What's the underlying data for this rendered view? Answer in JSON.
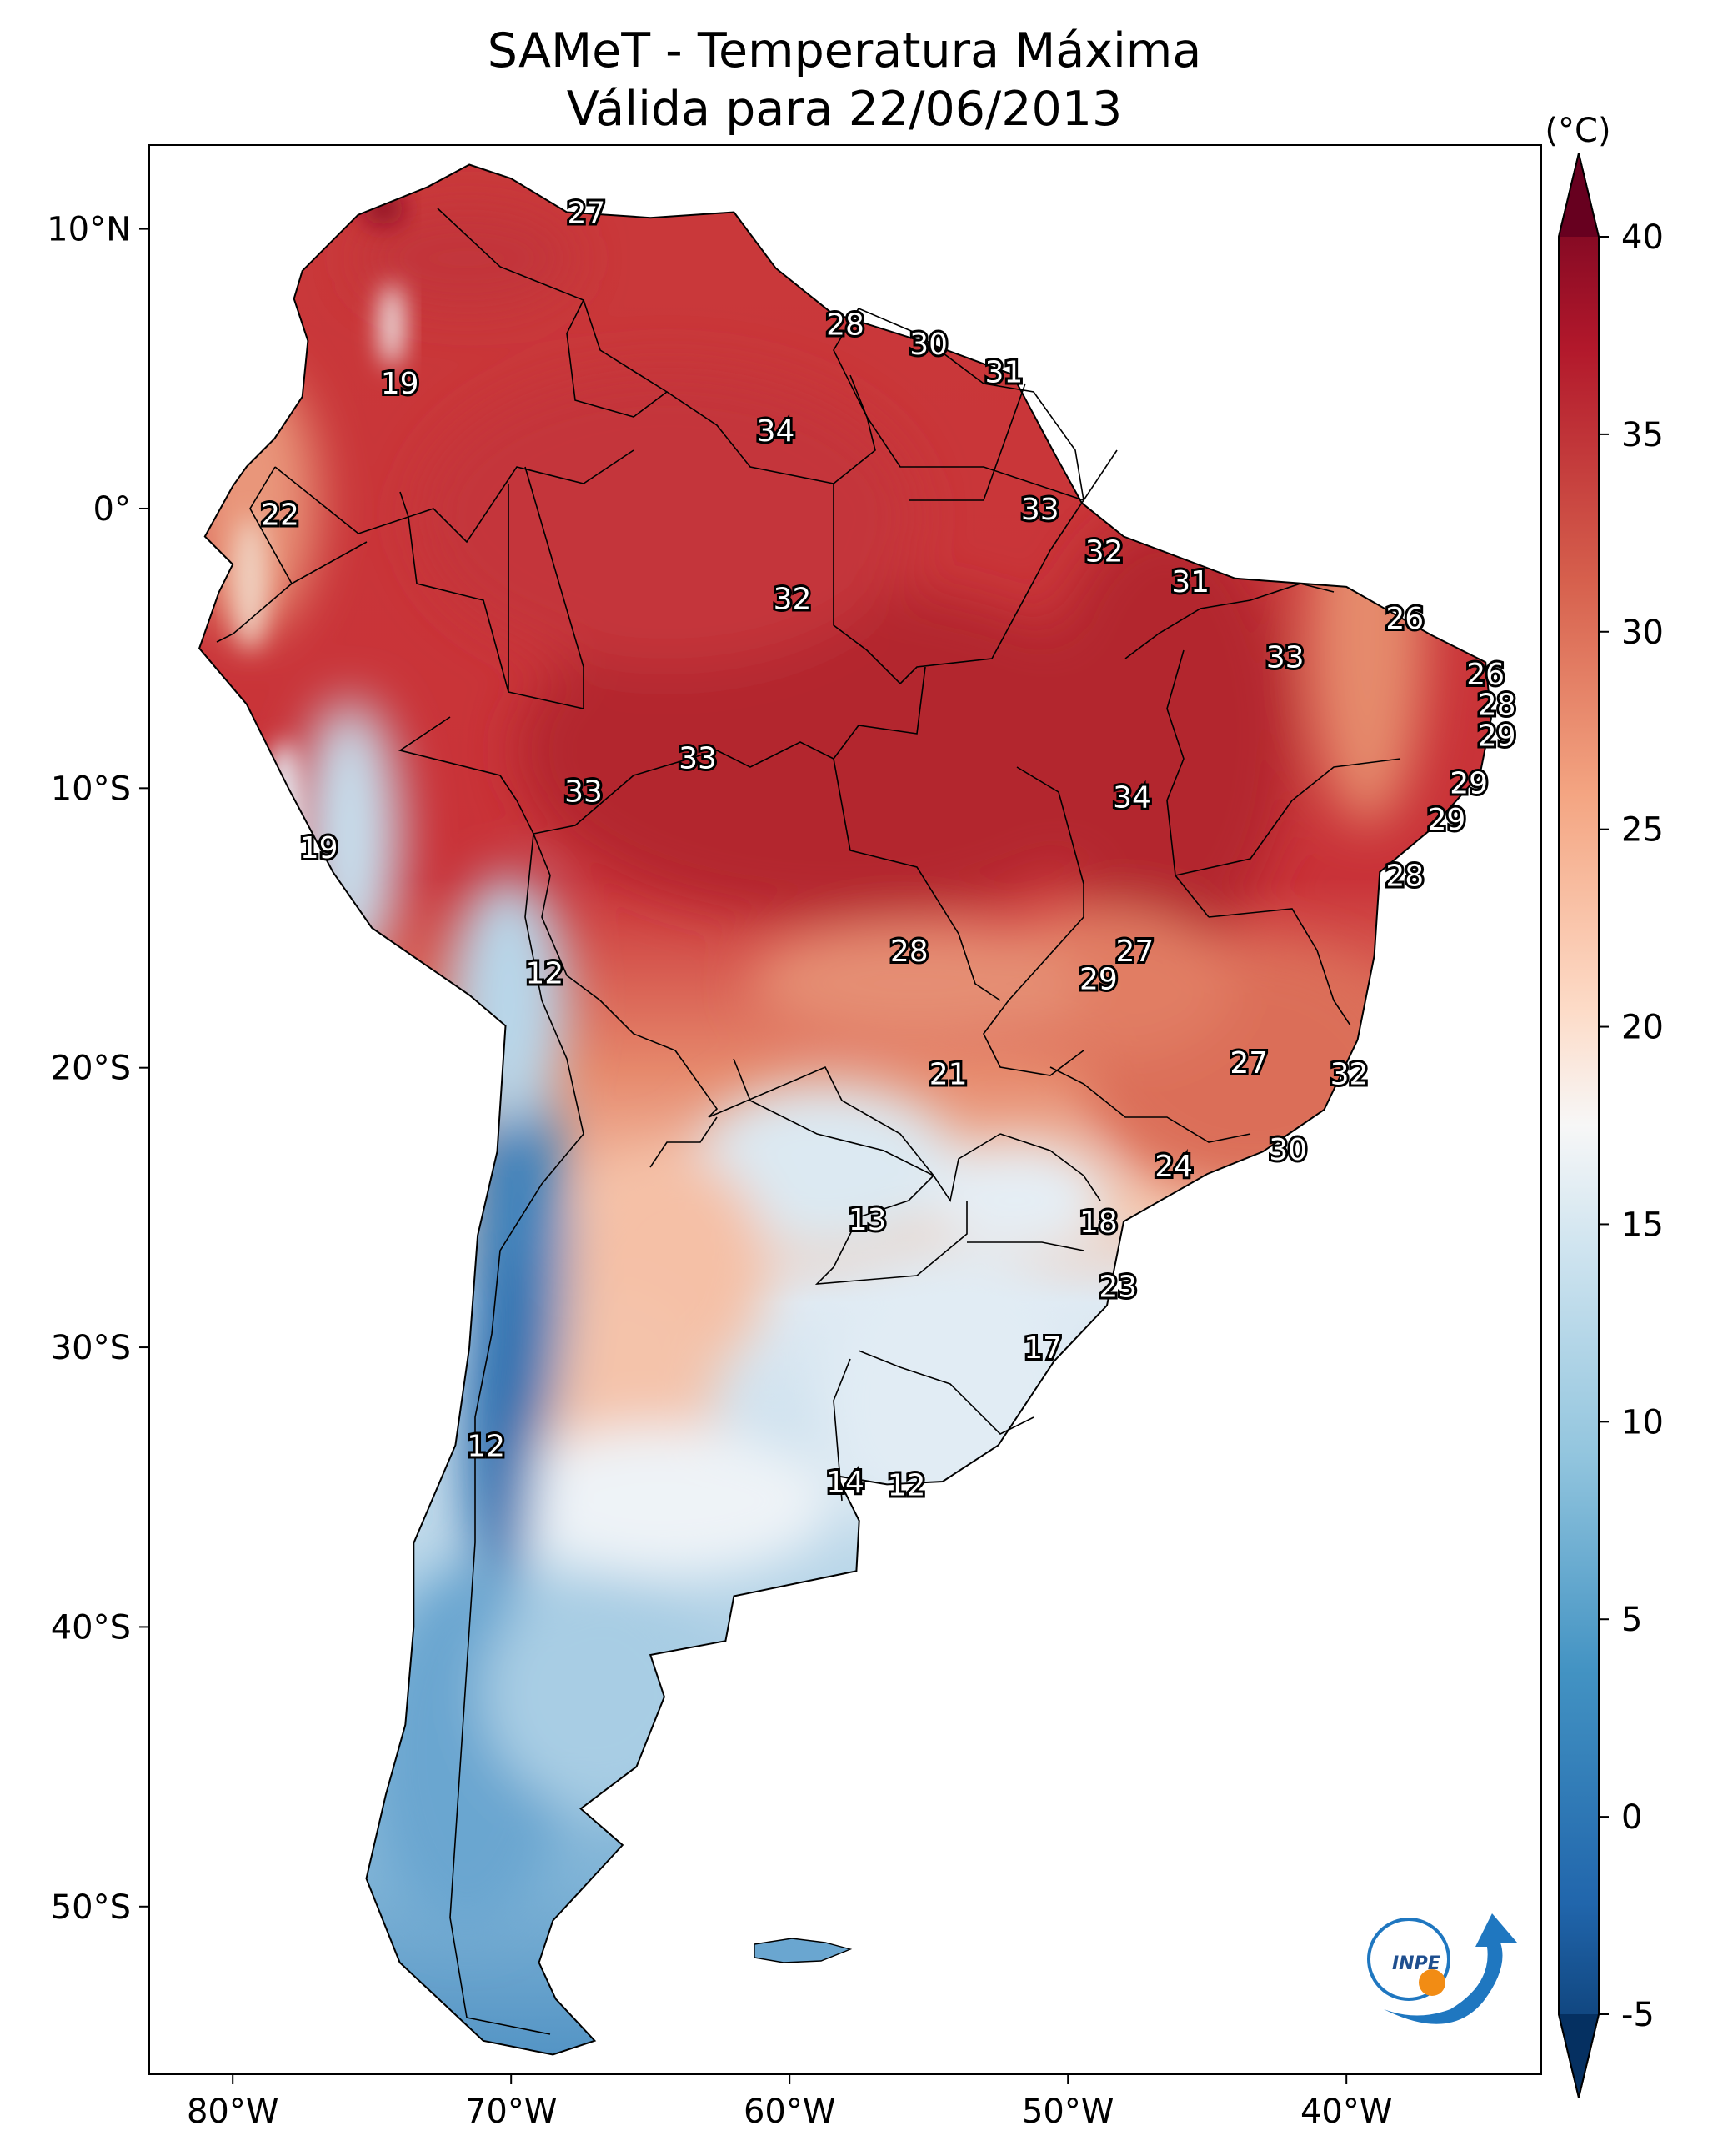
{
  "title_line1": "SAMeT - Temperatura Máxima",
  "title_line2": "Válida para 22/06/2013",
  "colorbar": {
    "unit": "(°C)",
    "ticks": [
      "40",
      "35",
      "30",
      "25",
      "20",
      "15",
      "10",
      "5",
      "0",
      "-5"
    ],
    "range": [
      -5,
      40
    ],
    "colormap": "RdBu_r"
  },
  "axes": {
    "lat_ticks": [
      "10°N",
      "0°",
      "10°S",
      "20°S",
      "30°S",
      "40°S",
      "50°S"
    ],
    "lon_ticks": [
      "80°W",
      "70°W",
      "60°W",
      "50°W",
      "40°W"
    ],
    "extent": {
      "lon": [
        -83,
        -33
      ],
      "lat": [
        -56,
        13
      ]
    }
  },
  "contour_labels": [
    {
      "text": "27",
      "lon": -67.3,
      "lat": 10.6
    },
    {
      "text": "19",
      "lon": -74.0,
      "lat": 4.5
    },
    {
      "text": "28",
      "lon": -58.0,
      "lat": 6.6
    },
    {
      "text": "30",
      "lon": -55.0,
      "lat": 5.9
    },
    {
      "text": "31",
      "lon": -52.3,
      "lat": 4.9
    },
    {
      "text": "34",
      "lon": -60.5,
      "lat": 2.8
    },
    {
      "text": "22",
      "lon": -78.3,
      "lat": -0.2
    },
    {
      "text": "33",
      "lon": -51.0,
      "lat": 0.0
    },
    {
      "text": "32",
      "lon": -48.7,
      "lat": -1.5
    },
    {
      "text": "32",
      "lon": -59.9,
      "lat": -3.2
    },
    {
      "text": "31",
      "lon": -45.6,
      "lat": -2.6
    },
    {
      "text": "26",
      "lon": -37.9,
      "lat": -3.9
    },
    {
      "text": "33",
      "lon": -42.2,
      "lat": -5.3
    },
    {
      "text": "26",
      "lon": -35.0,
      "lat": -5.9
    },
    {
      "text": "28",
      "lon": -34.6,
      "lat": -7.0
    },
    {
      "text": "29",
      "lon": -34.6,
      "lat": -8.1
    },
    {
      "text": "33",
      "lon": -63.3,
      "lat": -8.9
    },
    {
      "text": "33",
      "lon": -67.4,
      "lat": -10.1
    },
    {
      "text": "34",
      "lon": -47.7,
      "lat": -10.3
    },
    {
      "text": "29",
      "lon": -35.6,
      "lat": -9.8
    },
    {
      "text": "29",
      "lon": -36.4,
      "lat": -11.1
    },
    {
      "text": "19",
      "lon": -76.9,
      "lat": -12.1
    },
    {
      "text": "28",
      "lon": -37.9,
      "lat": -13.1
    },
    {
      "text": "28",
      "lon": -55.7,
      "lat": -15.8
    },
    {
      "text": "27",
      "lon": -47.6,
      "lat": -15.8
    },
    {
      "text": "29",
      "lon": -48.9,
      "lat": -16.8
    },
    {
      "text": "12",
      "lon": -68.8,
      "lat": -16.6
    },
    {
      "text": "21",
      "lon": -54.3,
      "lat": -20.2
    },
    {
      "text": "27",
      "lon": -43.5,
      "lat": -19.8
    },
    {
      "text": "32",
      "lon": -39.9,
      "lat": -20.2
    },
    {
      "text": "30",
      "lon": -42.1,
      "lat": -22.9
    },
    {
      "text": "24",
      "lon": -46.2,
      "lat": -23.5
    },
    {
      "text": "13",
      "lon": -57.2,
      "lat": -25.4
    },
    {
      "text": "18",
      "lon": -48.9,
      "lat": -25.5
    },
    {
      "text": "23",
      "lon": -48.2,
      "lat": -27.8
    },
    {
      "text": "17",
      "lon": -50.9,
      "lat": -30.0
    },
    {
      "text": "12",
      "lon": -70.9,
      "lat": -33.5
    },
    {
      "text": "14",
      "lon": -58.0,
      "lat": -34.8
    },
    {
      "text": "12",
      "lon": -55.8,
      "lat": -34.9
    }
  ],
  "logo": {
    "text": "INPE"
  }
}
